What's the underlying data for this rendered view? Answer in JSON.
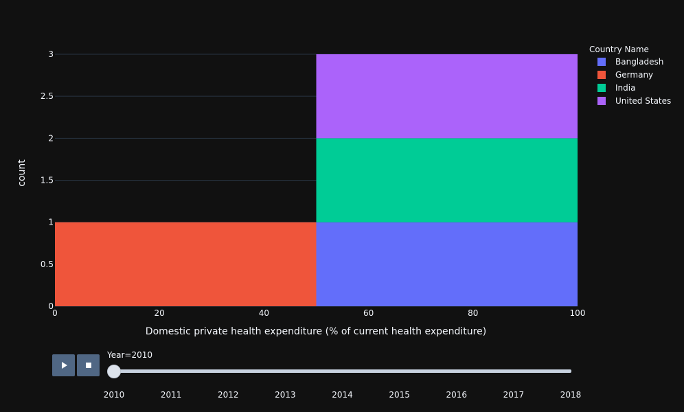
{
  "chart_data": {
    "type": "bar",
    "barmode": "stack",
    "x_bins": [
      [
        0,
        50
      ],
      [
        50,
        100
      ]
    ],
    "series": [
      {
        "name": "Bangladesh",
        "color": "#636efa",
        "values": [
          0,
          1
        ]
      },
      {
        "name": "Germany",
        "color": "#ef553b",
        "values": [
          1,
          0
        ]
      },
      {
        "name": "India",
        "color": "#00cc96",
        "values": [
          0,
          1
        ]
      },
      {
        "name": "United States",
        "color": "#ab63fa",
        "values": [
          0,
          1
        ]
      }
    ],
    "xlabel": "Domestic private health expenditure (% of current health expenditure)",
    "ylabel": "count",
    "xlim": [
      0,
      100
    ],
    "ylim": [
      0,
      3
    ],
    "x_ticks": [
      "0",
      "20",
      "40",
      "60",
      "80",
      "100"
    ],
    "y_ticks": [
      "0",
      "0.5",
      "1",
      "1.5",
      "2",
      "2.5",
      "3"
    ],
    "grid": true,
    "legend_title": "Country Name",
    "legend_position": "top-right"
  },
  "slider": {
    "label": "Year=2010",
    "current": "2010",
    "steps": [
      "2010",
      "2011",
      "2012",
      "2013",
      "2014",
      "2015",
      "2016",
      "2017",
      "2018"
    ]
  },
  "controls": {
    "play_icon": "play-icon",
    "stop_icon": "stop-icon"
  }
}
